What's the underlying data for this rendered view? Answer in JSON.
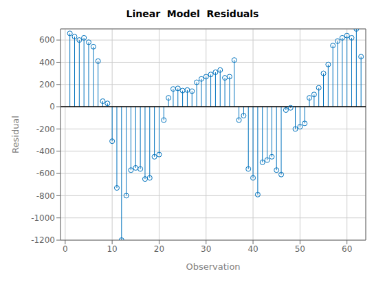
{
  "chart_data": {
    "type": "stem",
    "title": "Linear  Model  Residuals",
    "xlabel": "Observation",
    "ylabel": "Residual",
    "x": [
      1,
      2,
      3,
      4,
      5,
      6,
      7,
      8,
      9,
      10,
      11,
      12,
      13,
      14,
      15,
      16,
      17,
      18,
      19,
      20,
      21,
      22,
      23,
      24,
      25,
      26,
      27,
      28,
      29,
      30,
      31,
      32,
      33,
      34,
      35,
      36,
      37,
      38,
      39,
      40,
      41,
      42,
      43,
      44,
      45,
      46,
      47,
      48,
      49,
      50,
      51,
      52,
      53,
      54,
      55,
      56,
      57,
      58,
      59,
      60,
      61,
      62,
      63
    ],
    "values": [
      660,
      630,
      600,
      620,
      580,
      540,
      410,
      50,
      30,
      -310,
      -730,
      -1200,
      -800,
      -570,
      -550,
      -560,
      -650,
      -640,
      -450,
      -430,
      -120,
      80,
      160,
      165,
      145,
      150,
      140,
      220,
      250,
      270,
      290,
      310,
      330,
      260,
      270,
      420,
      -120,
      -80,
      -560,
      -640,
      -790,
      -500,
      -480,
      -450,
      -570,
      -610,
      -30,
      -10,
      -200,
      -180,
      -150,
      80,
      110,
      170,
      300,
      380,
      550,
      590,
      620,
      640,
      620,
      700,
      450
    ],
    "color": "#0072BD",
    "marker": "circle",
    "xlim": [
      -1,
      64
    ],
    "ylim": [
      -1200,
      700
    ],
    "xticks": [
      0,
      10,
      20,
      30,
      40,
      50,
      60
    ],
    "yticks": [
      -1200,
      -1000,
      -800,
      -600,
      -400,
      -200,
      0,
      200,
      400,
      600
    ],
    "grid": true
  }
}
